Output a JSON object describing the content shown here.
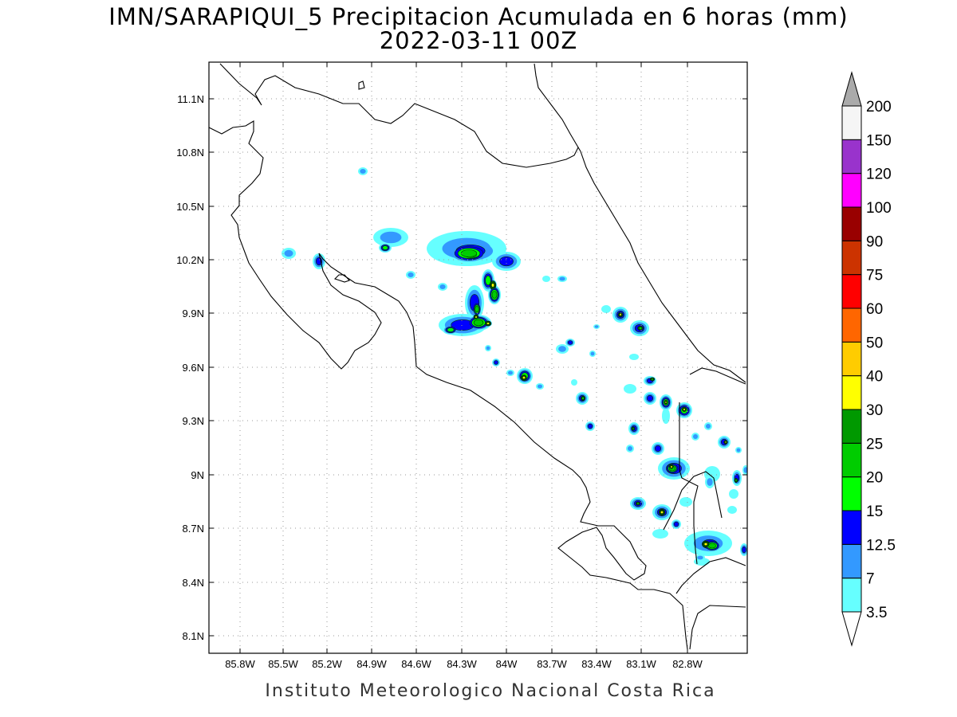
{
  "header": {
    "title_line1": "IMN/SARAPIQUI_5 Precipitacion Acumulada en 6 horas (mm)",
    "title_line2": "2022-03-11 00Z"
  },
  "footer": {
    "credit": "Instituto Meteorologico Nacional Costa Rica"
  },
  "axes": {
    "y_ticks": [
      "11.1N",
      "10.8N",
      "10.5N",
      "10.2N",
      "9.9N",
      "9.6N",
      "9.3N",
      "9N",
      "8.7N",
      "8.4N",
      "8.1N"
    ],
    "x_ticks": [
      "85.8W",
      "85.5W",
      "85.2W",
      "84.9W",
      "84.6W",
      "84.3W",
      "84W",
      "83.7W",
      "83.4W",
      "83.1W",
      "82.8W"
    ]
  },
  "colorbar": {
    "labels": [
      "3.5",
      "7",
      "12.5",
      "15",
      "20",
      "25",
      "30",
      "40",
      "50",
      "60",
      "75",
      "90",
      "100",
      "120",
      "150",
      "200"
    ],
    "colors": [
      "#ffffff",
      "#66ffff",
      "#3399ff",
      "#0000ff",
      "#00ff00",
      "#00cc00",
      "#009900",
      "#ffff00",
      "#ffcc00",
      "#ff6600",
      "#ff0000",
      "#cc3300",
      "#990000",
      "#ff00ff",
      "#9933cc",
      "#f5f5f5",
      "#aaaaaa"
    ]
  },
  "precip_colors": {
    "c1": "#66ffff",
    "c2": "#3399ff",
    "c3": "#0000ff",
    "c4": "#00ff00",
    "c5": "#00cc00",
    "c6": "#009900",
    "c7": "#ffff00"
  }
}
